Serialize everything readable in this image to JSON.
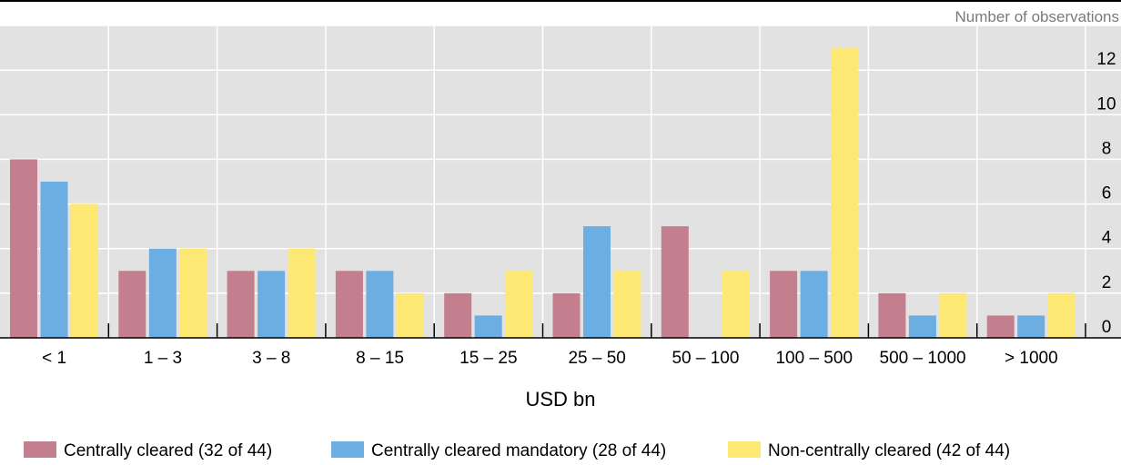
{
  "chart_data": {
    "type": "bar",
    "unit_label": "Number of observations",
    "xlabel": "USD bn",
    "categories": [
      "< 1",
      "1 – 3",
      "3 – 8",
      "8 – 15",
      "15 – 25",
      "25 – 50",
      "50 – 100",
      "100 – 500",
      "500 – 1000",
      "> 1000"
    ],
    "series": [
      {
        "name": "Centrally cleared (32 of 44)",
        "color": "#c47f8e",
        "values": [
          8,
          3,
          3,
          3,
          2,
          2,
          5,
          3,
          2,
          1
        ]
      },
      {
        "name": "Centrally cleared mandatory (28 of 44)",
        "color": "#6daee2",
        "values": [
          7,
          4,
          3,
          3,
          1,
          5,
          0,
          3,
          1,
          1
        ]
      },
      {
        "name": "Non-centrally cleared (42 of 44)",
        "color": "#fde874",
        "values": [
          6,
          4,
          4,
          2,
          3,
          3,
          3,
          13,
          2,
          2
        ]
      }
    ],
    "ylim": [
      0,
      14
    ],
    "yticks": [
      0,
      2,
      4,
      6,
      8,
      10,
      12
    ],
    "y_axis_side": "right",
    "grid": true,
    "legend_position": "bottom"
  }
}
